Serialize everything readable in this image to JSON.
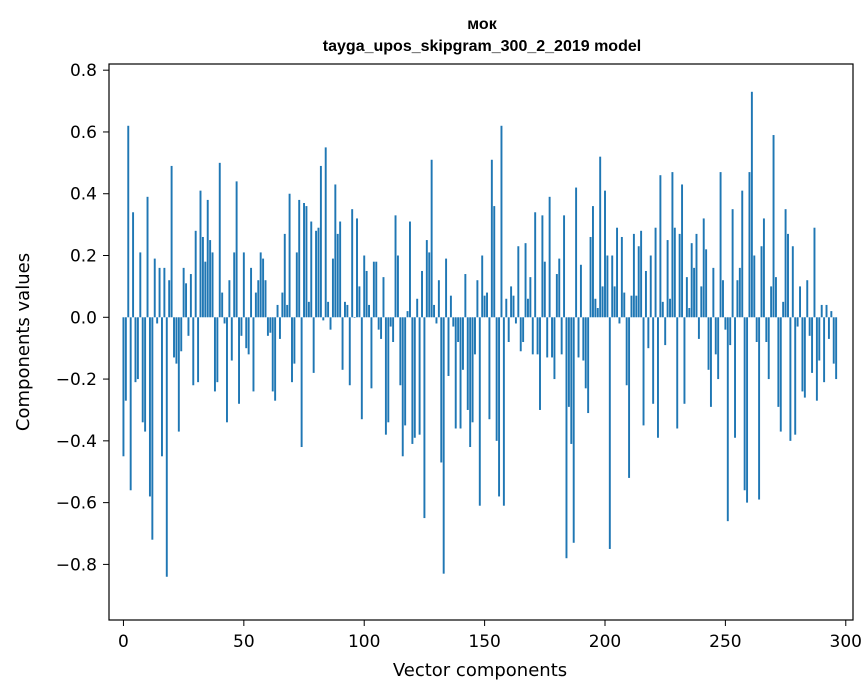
{
  "chart_data": {
    "type": "bar",
    "title": "мок",
    "subtitle": "tayga_upos_skipgram_300_2_2019 model",
    "xlabel": "Vector components",
    "ylabel": "Components values",
    "xlim": [
      -6,
      303
    ],
    "ylim": [
      -0.98,
      0.82
    ],
    "xticks": [
      0,
      50,
      100,
      150,
      200,
      250,
      300
    ],
    "xtick_labels": [
      "0",
      "50",
      "100",
      "150",
      "200",
      "250",
      "300"
    ],
    "yticks": [
      -0.8,
      -0.6,
      -0.4,
      -0.2,
      0.0,
      0.2,
      0.4,
      0.6,
      0.8
    ],
    "ytick_labels": [
      "−0.8",
      "−0.6",
      "−0.4",
      "−0.2",
      "0.0",
      "0.2",
      "0.4",
      "0.6",
      "0.8"
    ],
    "bar_color": "#1f77b4",
    "grid": false,
    "values": [
      -0.45,
      -0.27,
      0.62,
      -0.56,
      0.34,
      -0.21,
      -0.2,
      0.21,
      -0.34,
      -0.37,
      0.39,
      -0.58,
      -0.72,
      0.19,
      -0.02,
      0.16,
      -0.45,
      0.16,
      -0.84,
      0.12,
      0.49,
      -0.13,
      -0.15,
      -0.37,
      -0.11,
      0.16,
      0.11,
      -0.06,
      0.14,
      -0.22,
      0.28,
      -0.21,
      0.41,
      0.26,
      0.18,
      0.38,
      0.25,
      0.21,
      -0.24,
      -0.21,
      0.5,
      0.08,
      -0.02,
      -0.34,
      0.12,
      -0.14,
      0.21,
      0.44,
      -0.28,
      -0.06,
      0.21,
      -0.1,
      -0.12,
      0.16,
      -0.24,
      0.08,
      0.12,
      0.21,
      0.19,
      0.12,
      -0.06,
      -0.05,
      -0.24,
      -0.27,
      0.04,
      -0.07,
      0.08,
      0.27,
      0.04,
      0.4,
      -0.21,
      -0.15,
      0.21,
      0.38,
      -0.42,
      0.37,
      0.36,
      0.05,
      0.31,
      -0.18,
      0.28,
      0.29,
      0.49,
      -0.01,
      0.55,
      0.05,
      -0.04,
      0.19,
      0.43,
      0.27,
      0.31,
      -0.17,
      0.05,
      0.04,
      -0.22,
      0.35,
      0.0,
      0.32,
      0.1,
      -0.33,
      0.2,
      0.15,
      0.04,
      -0.23,
      0.18,
      0.18,
      -0.04,
      -0.07,
      0.13,
      -0.38,
      -0.34,
      -0.03,
      -0.08,
      0.33,
      0.2,
      -0.22,
      -0.45,
      -0.35,
      0.02,
      0.31,
      -0.41,
      -0.39,
      0.06,
      -0.38,
      0.15,
      -0.65,
      0.25,
      0.21,
      0.51,
      0.04,
      -0.02,
      0.12,
      -0.47,
      -0.83,
      0.19,
      -0.19,
      0.07,
      -0.03,
      -0.36,
      -0.08,
      -0.36,
      -0.17,
      0.14,
      -0.3,
      -0.42,
      -0.34,
      -0.12,
      0.12,
      -0.61,
      0.2,
      0.07,
      0.08,
      -0.33,
      0.51,
      0.36,
      -0.4,
      -0.58,
      0.62,
      -0.61,
      0.06,
      -0.08,
      0.1,
      0.07,
      -0.02,
      0.23,
      -0.11,
      -0.08,
      0.24,
      0.06,
      0.13,
      -0.12,
      0.34,
      -0.12,
      -0.3,
      0.33,
      0.18,
      -0.13,
      0.39,
      -0.13,
      -0.2,
      0.14,
      0.19,
      -0.12,
      0.33,
      -0.78,
      -0.29,
      -0.41,
      -0.73,
      0.42,
      -0.13,
      0.17,
      -0.14,
      -0.23,
      -0.31,
      0.26,
      0.36,
      0.06,
      0.03,
      0.52,
      0.1,
      0.41,
      0.2,
      -0.75,
      0.2,
      0.1,
      0.29,
      -0.02,
      0.26,
      0.08,
      -0.22,
      -0.52,
      0.07,
      0.27,
      0.07,
      0.23,
      0.28,
      -0.35,
      0.15,
      -0.1,
      0.2,
      -0.28,
      0.29,
      -0.39,
      0.46,
      0.05,
      -0.09,
      0.25,
      0.06,
      0.47,
      0.29,
      -0.36,
      0.27,
      0.43,
      -0.28,
      0.13,
      0.03,
      0.24,
      0.16,
      0.27,
      -0.07,
      0.1,
      0.32,
      0.22,
      -0.17,
      -0.29,
      0.16,
      -0.12,
      -0.2,
      0.47,
      0.12,
      -0.04,
      -0.66,
      -0.09,
      0.35,
      -0.39,
      0.12,
      0.16,
      0.41,
      -0.56,
      -0.6,
      0.47,
      0.73,
      0.2,
      -0.08,
      -0.59,
      0.23,
      0.32,
      -0.08,
      -0.2,
      0.1,
      0.59,
      0.13,
      -0.29,
      -0.37,
      0.05,
      0.35,
      0.27,
      -0.4,
      0.23,
      -0.38,
      -0.03,
      0.1,
      -0.24,
      -0.26,
      0.12,
      -0.06,
      -0.18,
      0.29,
      -0.27,
      -0.14,
      0.04,
      -0.21,
      0.04,
      -0.07,
      0.02,
      -0.15,
      -0.2
    ]
  }
}
